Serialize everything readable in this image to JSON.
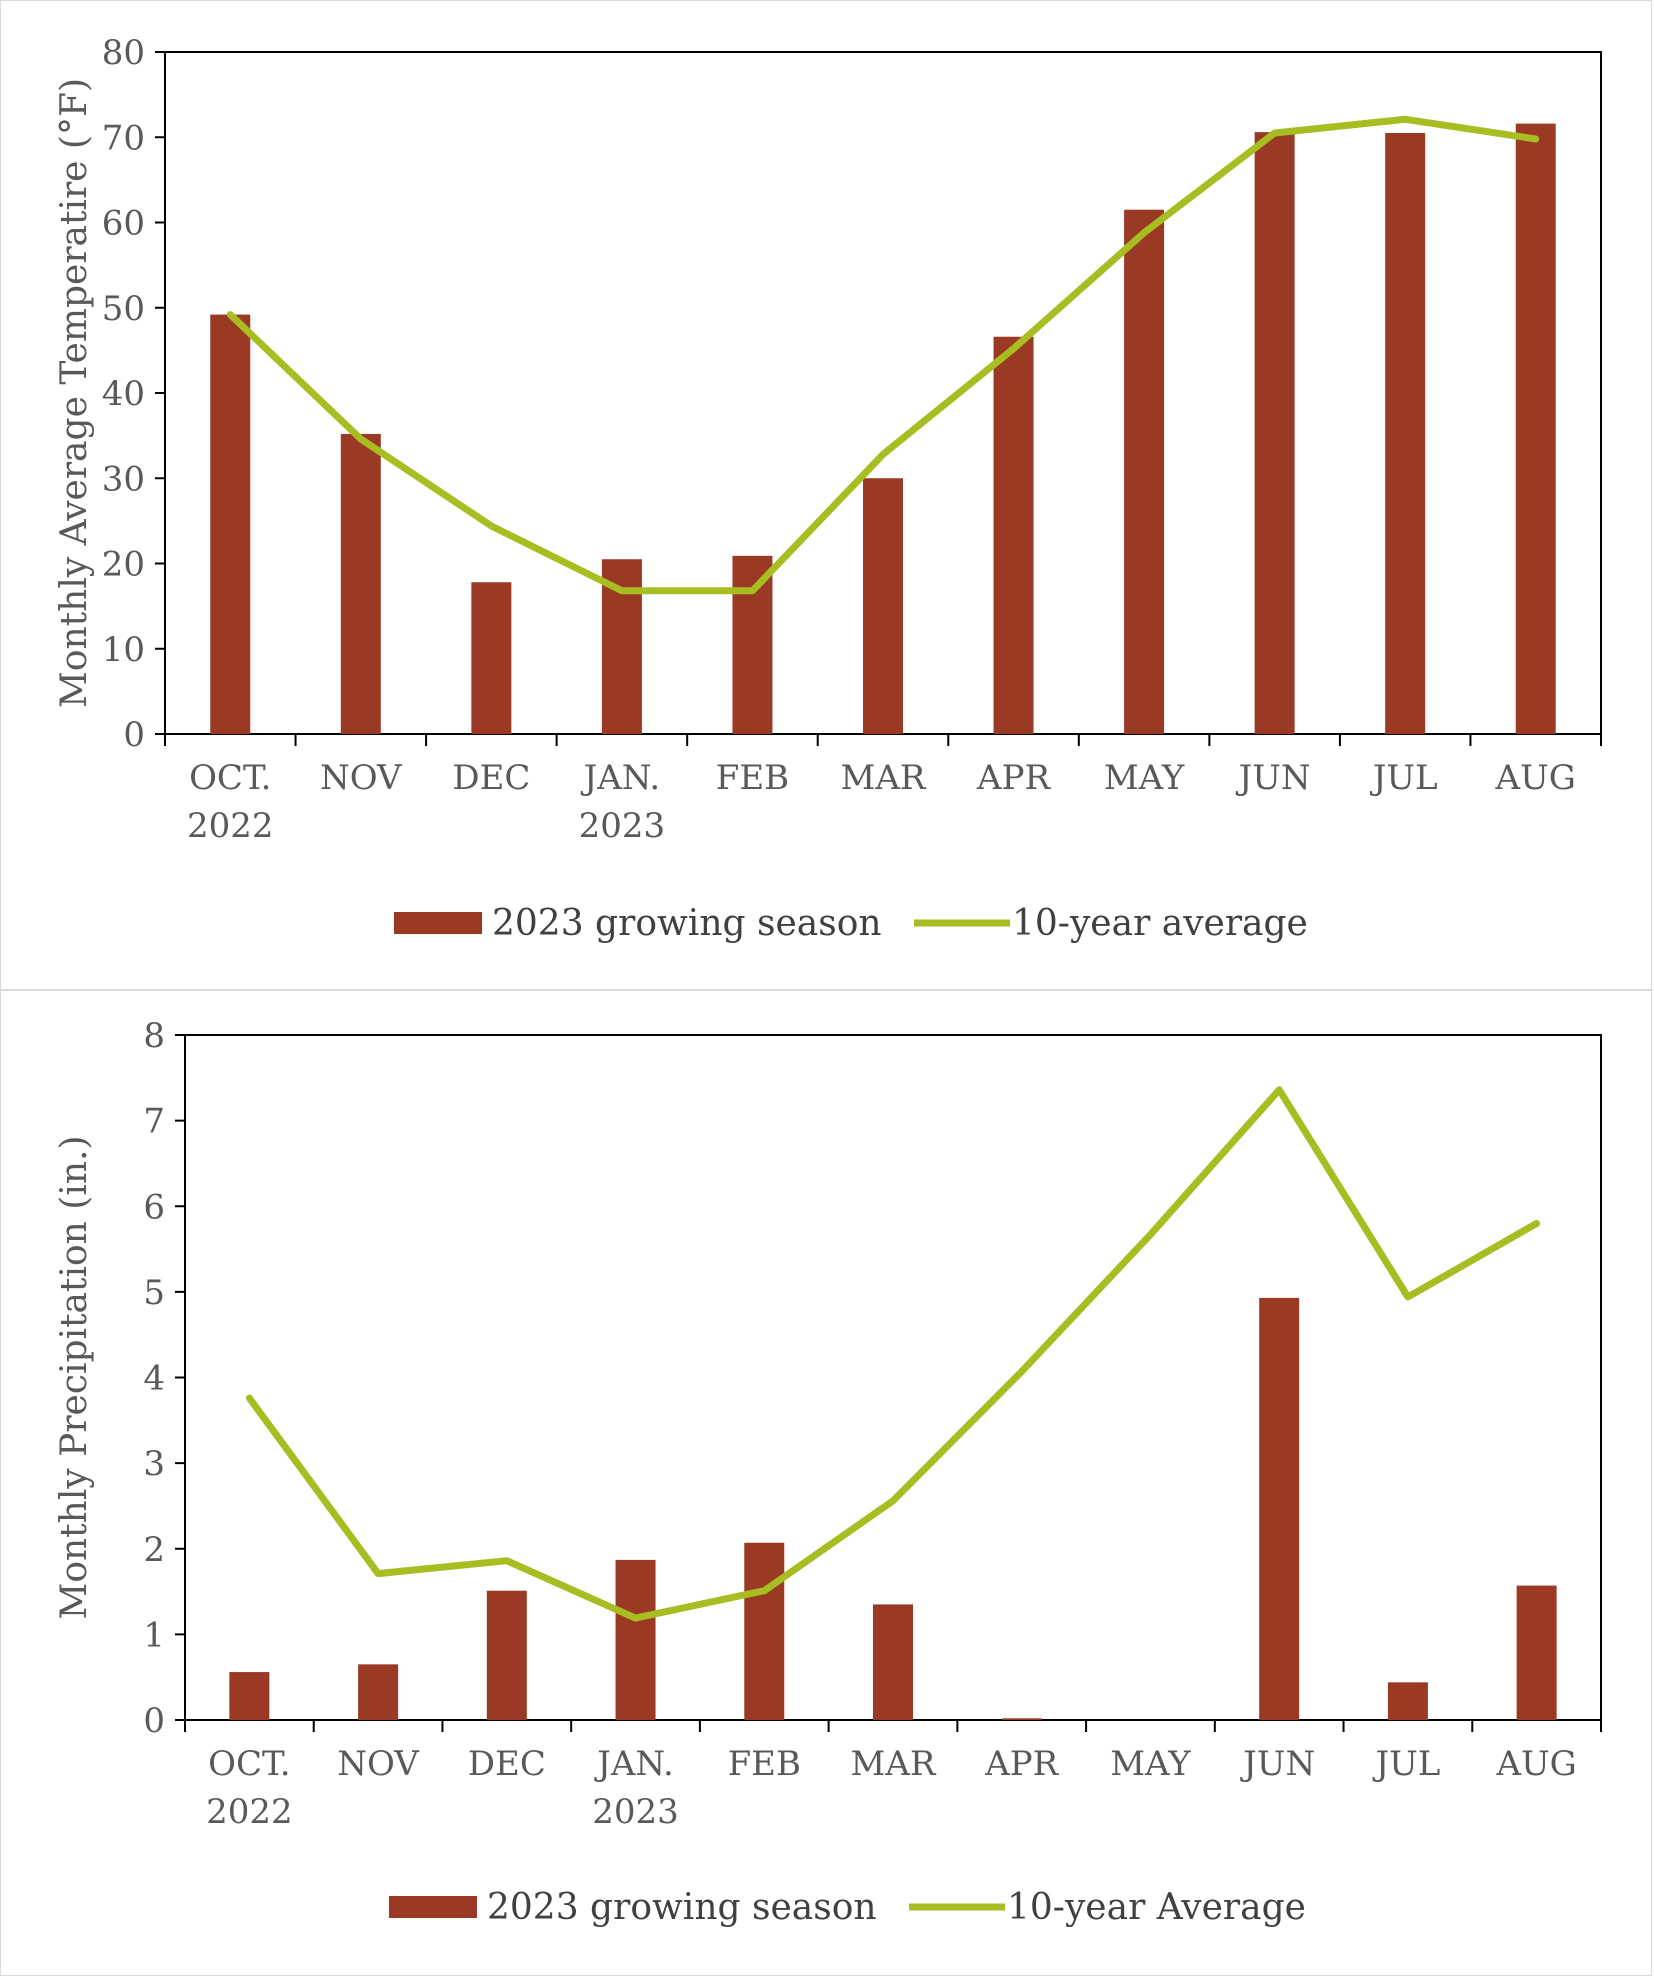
{
  "colors": {
    "bar": "#9b3a24",
    "line": "#a8bd22",
    "axis": "#000000",
    "text": "#595959"
  },
  "chart_data": [
    {
      "type": "bar",
      "categories": [
        [
          "OCT.",
          "2022"
        ],
        [
          "NOV"
        ],
        [
          "DEC"
        ],
        [
          "JAN.",
          "2023"
        ],
        [
          "FEB"
        ],
        [
          "MAR"
        ],
        [
          "APR"
        ],
        [
          "MAY"
        ],
        [
          "JUN"
        ],
        [
          "JUL"
        ],
        [
          "AUG"
        ]
      ],
      "ylabel": "Monthly Average Temperatire (°F)",
      "ylim": [
        0,
        80
      ],
      "yticks": [
        0,
        10,
        20,
        30,
        40,
        50,
        60,
        70,
        80
      ],
      "grid": false,
      "legend_position": "bottom",
      "series": [
        {
          "name": "2023 growing season",
          "type": "bar",
          "values": [
            49.2,
            35.2,
            17.8,
            20.5,
            20.9,
            30,
            46.6,
            61.5,
            70.6,
            70.5,
            71.6
          ]
        },
        {
          "name": "10-year average",
          "type": "line",
          "values": [
            49.2,
            34.6,
            24.4,
            16.8,
            16.8,
            32.8,
            45.2,
            58.8,
            70.5,
            72.1,
            69.8
          ]
        }
      ]
    },
    {
      "type": "bar",
      "categories": [
        [
          "OCT.",
          "2022"
        ],
        [
          "NOV"
        ],
        [
          "DEC"
        ],
        [
          "JAN.",
          "2023"
        ],
        [
          "FEB"
        ],
        [
          "MAR"
        ],
        [
          "APR"
        ],
        [
          "MAY"
        ],
        [
          "JUN"
        ],
        [
          "JUL"
        ],
        [
          "AUG"
        ]
      ],
      "ylabel": "Monthly Precipitation (in.)",
      "ylim": [
        0,
        8
      ],
      "yticks": [
        0,
        1,
        2,
        3,
        4,
        5,
        6,
        7,
        8
      ],
      "grid": false,
      "legend_position": "bottom",
      "series": [
        {
          "name": "2023 growing season",
          "type": "bar",
          "values": [
            0.56,
            0.65,
            1.51,
            1.87,
            2.07,
            1.35,
            0.02,
            0,
            4.93,
            0.44,
            1.57
          ]
        },
        {
          "name": "10-year Average",
          "type": "line",
          "values": [
            3.76,
            1.71,
            1.86,
            1.19,
            1.51,
            2.56,
            4.07,
            5.67,
            7.36,
            4.94,
            5.8
          ]
        }
      ]
    }
  ]
}
